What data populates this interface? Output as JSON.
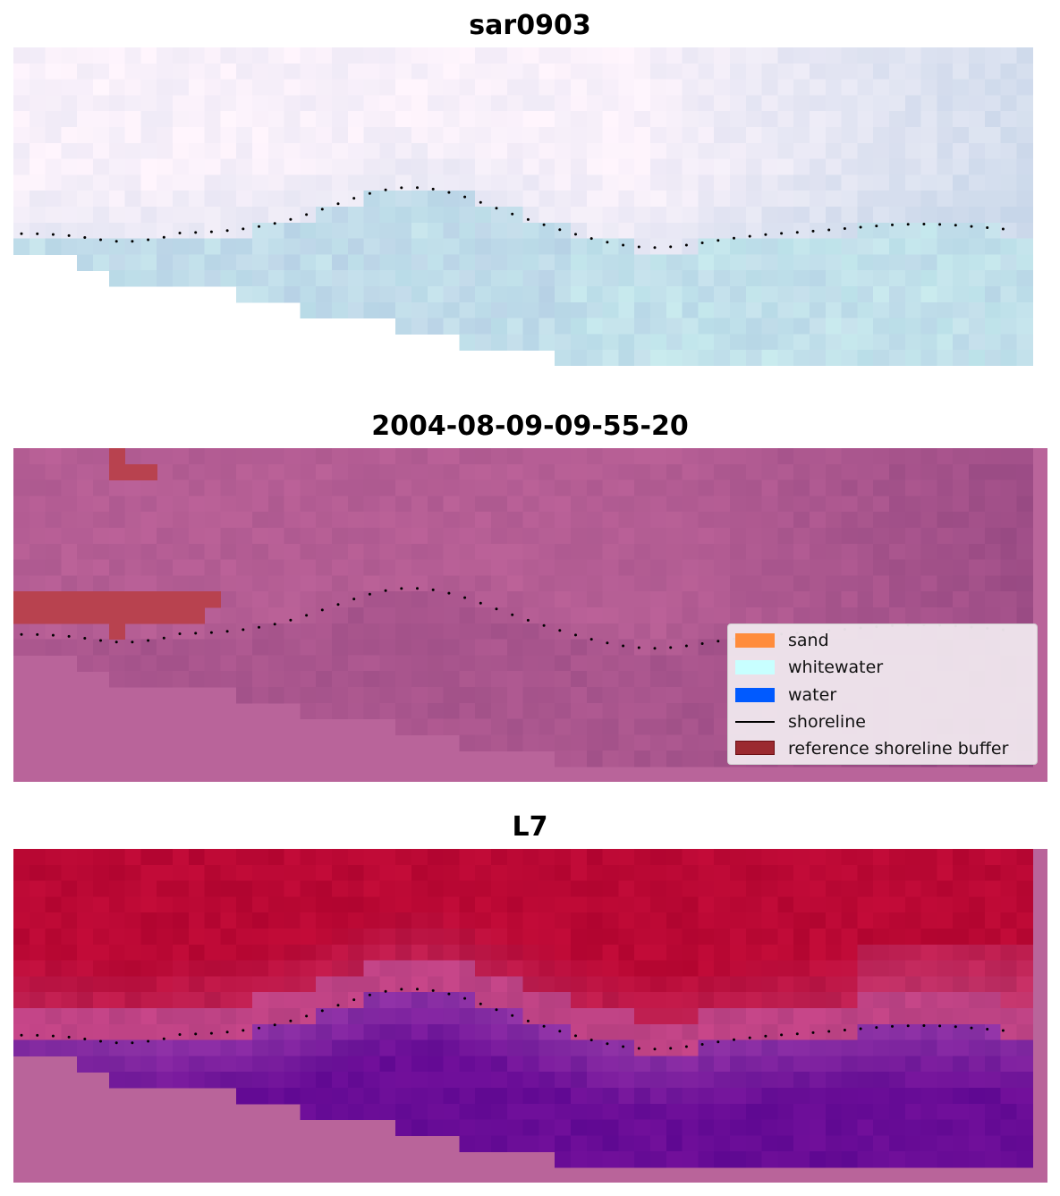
{
  "panels": [
    {
      "title": "sar0903",
      "style": "rgb"
    },
    {
      "title": "2004-08-09-09-55-20",
      "style": "classified"
    },
    {
      "title": "L7",
      "style": "index"
    }
  ],
  "legend": {
    "items": [
      {
        "label": "sand",
        "kind": "patch",
        "color": "#ff8c3c"
      },
      {
        "label": "whitewater",
        "kind": "patch",
        "color": "#c8ffff"
      },
      {
        "label": "water",
        "kind": "patch",
        "color": "#005aff"
      },
      {
        "label": "shoreline",
        "kind": "line",
        "color": "#000000"
      },
      {
        "label": "reference shoreline buffer",
        "kind": "patch",
        "color": "#9b2a30"
      }
    ]
  },
  "colors": {
    "shoreline_dots": "#000000",
    "nodata_fill": "#b9649a",
    "buffer": "#b8424f",
    "land_index": "#b80030",
    "water_index": "#6a0098"
  }
}
